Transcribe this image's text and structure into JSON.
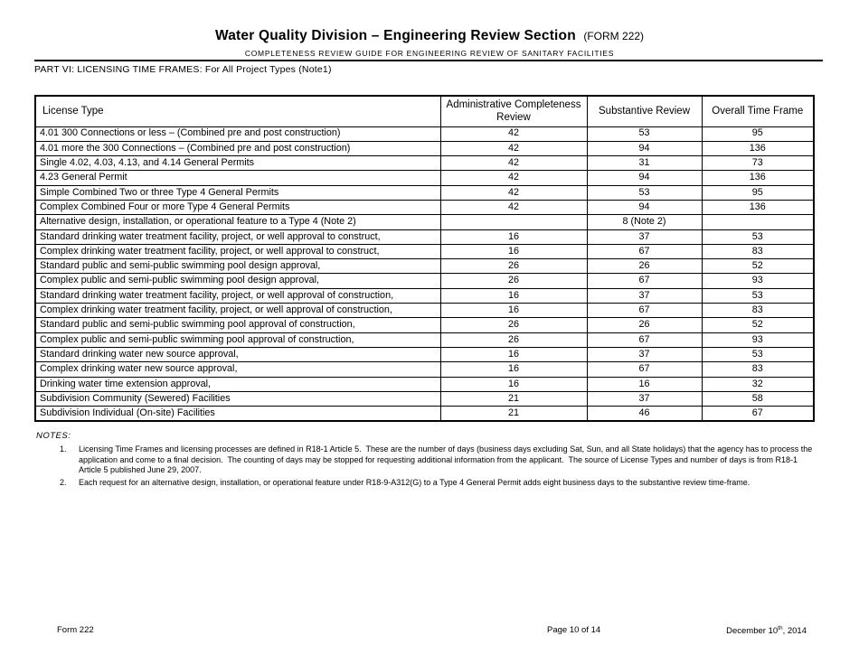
{
  "header": {
    "title": "Water Quality Division – Engineering Review Section",
    "form_label": "(FORM 222)",
    "subtitle": "COMPLETENESS REVIEW GUIDE FOR ENGINEERING REVIEW OF SANITARY FACILITIES",
    "part_header": "PART VI: LICENSING TIME FRAMES: For All Project Types (Note1)"
  },
  "table": {
    "columns": [
      "License Type",
      "Administrative Completeness Review",
      "Substantive Review",
      "Overall Time Frame"
    ],
    "rows": [
      [
        "4.01 300 Connections or less – (Combined pre and post construction)",
        "42",
        "53",
        "95"
      ],
      [
        "4.01 more the 300 Connections – (Combined pre and post construction)",
        "42",
        "94",
        "136"
      ],
      [
        "Single 4.02, 4.03, 4.13, and 4.14 General Permits",
        "42",
        "31",
        "73"
      ],
      [
        "4.23 General Permit",
        "42",
        "94",
        "136"
      ],
      [
        "Simple Combined Two or three Type 4 General Permits",
        "42",
        "53",
        "95"
      ],
      [
        "Complex Combined Four or more Type 4 General Permits",
        "42",
        "94",
        "136"
      ],
      [
        "Alternative design, installation, or operational feature to a Type 4 (Note 2)",
        "",
        "8 (Note 2)",
        ""
      ],
      [
        "Standard drinking water treatment facility, project, or well approval to construct,",
        "16",
        "37",
        "53"
      ],
      [
        "Complex drinking water treatment facility, project, or well approval to construct,",
        "16",
        "67",
        "83"
      ],
      [
        "Standard public and semi-public swimming pool design approval,",
        "26",
        "26",
        "52"
      ],
      [
        "Complex public and semi-public swimming pool design approval,",
        "26",
        "67",
        "93"
      ],
      [
        "Standard drinking water treatment facility, project, or well approval of construction,",
        "16",
        "37",
        "53"
      ],
      [
        "Complex drinking water treatment facility, project, or well approval of construction,",
        "16",
        "67",
        "83"
      ],
      [
        "Standard public and semi-public swimming pool approval of construction,",
        "26",
        "26",
        "52"
      ],
      [
        "Complex public and semi-public swimming pool approval of construction,",
        "26",
        "67",
        "93"
      ],
      [
        "Standard drinking water new source approval,",
        "16",
        "37",
        "53"
      ],
      [
        "Complex drinking water new source approval,",
        "16",
        "67",
        "83"
      ],
      [
        "Drinking water time extension approval,",
        "16",
        "16",
        "32"
      ],
      [
        "Subdivision Community (Sewered) Facilities",
        "21",
        "37",
        "58"
      ],
      [
        "Subdivision Individual (On-site) Facilities",
        "21",
        "46",
        "67"
      ]
    ]
  },
  "notes": {
    "label": "NOTES:",
    "items": [
      {
        "number": "1.",
        "text": "Licensing Time Frames and licensing processes are defined in R18-1 Article 5.  These are the number of days (business days excluding Sat, Sun, and all State holidays) that the agency has to process the application and come to a final decision.  The counting of days may be stopped for requesting additional information from the applicant.  The source of License Types and number of days is from R18-1 Article 5 published June 29, 2007."
      },
      {
        "number": "2.",
        "text": "Each request for an alternative design, installation, or operational feature under R18-9-A312(G) to a Type 4 General Permit adds eight business days to the substantive review time-frame."
      }
    ]
  },
  "footer": {
    "form_number": "Form 222",
    "page_indicator": "Page 10 of 14",
    "date_prefix": "December 10",
    "date_superscript": "th",
    "date_suffix": ", 2014"
  }
}
